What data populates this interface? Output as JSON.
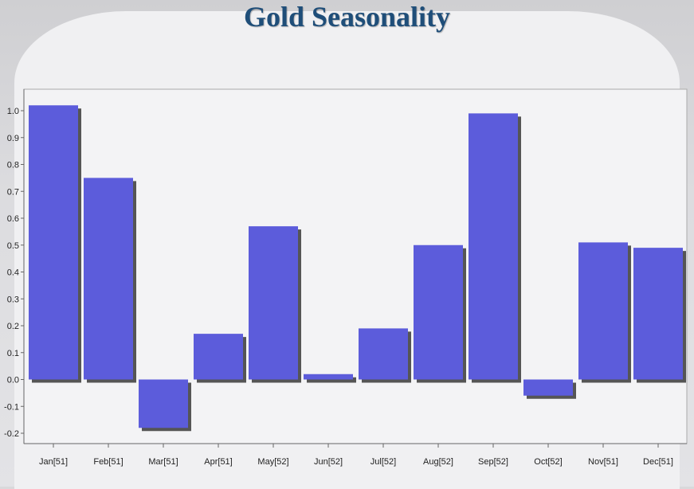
{
  "title": "Gold Seasonality",
  "colors": {
    "bar": "#5c5cdb",
    "shadow": "#555555",
    "plot_bg": "#f3f3f5",
    "title": "#1f4e79"
  },
  "chart_data": {
    "type": "bar",
    "title": "Gold Seasonality",
    "xlabel": "",
    "ylabel": "",
    "categories": [
      "Jan[51]",
      "Feb[51]",
      "Mar[51]",
      "Apr[51]",
      "May[52]",
      "Jun[52]",
      "Jul[52]",
      "Aug[52]",
      "Sep[52]",
      "Oct[52]",
      "Nov[51]",
      "Dec[51]"
    ],
    "values": [
      1.02,
      0.75,
      -0.18,
      0.17,
      0.57,
      0.02,
      0.19,
      0.5,
      0.99,
      -0.06,
      0.51,
      0.49
    ],
    "ylim": [
      -0.2,
      1.0
    ],
    "yticks": [
      "1.0",
      "0.9",
      "0.8",
      "0.7",
      "0.6",
      "0.5",
      "0.4",
      "0.3",
      "0.2",
      "0.1",
      "0.0",
      "-0.1",
      "-0.2"
    ],
    "grid": false,
    "legend": "none"
  }
}
